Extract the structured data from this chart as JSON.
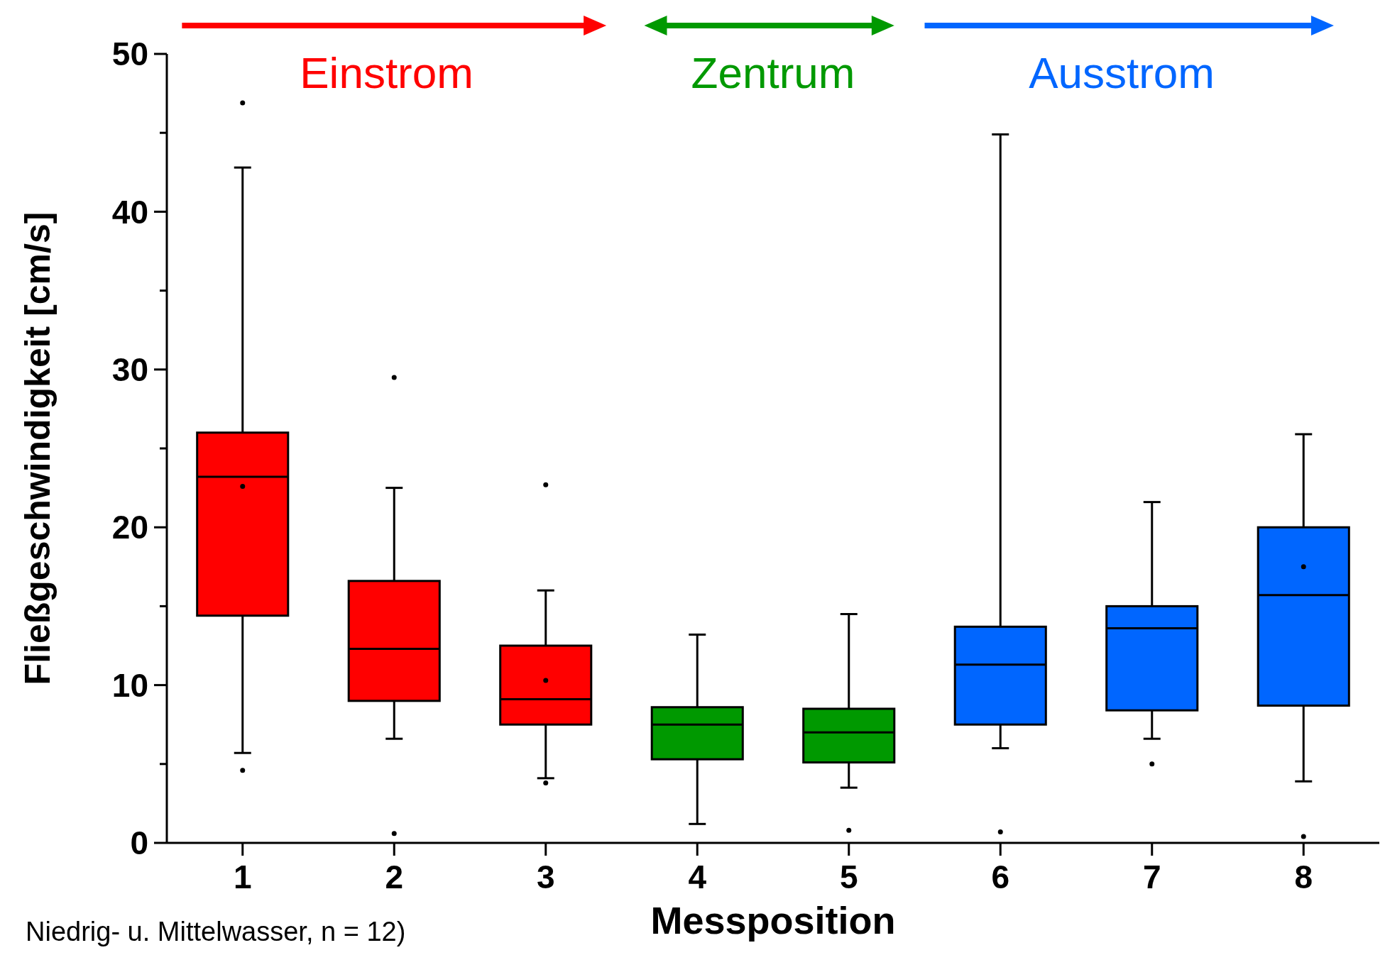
{
  "chart_data": {
    "type": "box",
    "xlabel": "Messposition",
    "ylabel": "Fließgeschwindigkeit [cm/s]",
    "categories": [
      "1",
      "2",
      "3",
      "4",
      "5",
      "6",
      "7",
      "8"
    ],
    "colors": [
      "#ff0000",
      "#ff0000",
      "#ff0000",
      "#009900",
      "#009900",
      "#0066ff",
      "#0066ff",
      "#0066ff"
    ],
    "boxes": [
      {
        "low": 5.7,
        "q1": 14.4,
        "median": 23.2,
        "q3": 26,
        "high": 42.8,
        "mean": 22.6,
        "outliers": [
          46.9,
          4.6
        ]
      },
      {
        "low": 6.6,
        "q1": 9,
        "median": 12.3,
        "q3": 16.6,
        "high": 22.5,
        "outliers": [
          29.5,
          0.6
        ]
      },
      {
        "low": 4.1,
        "q1": 7.5,
        "median": 9.1,
        "q3": 12.5,
        "high": 16,
        "mean": 10.3,
        "outliers": [
          22.7,
          3.8
        ]
      },
      {
        "low": 1.2,
        "q1": 5.3,
        "median": 7.5,
        "q3": 8.6,
        "high": 13.2
      },
      {
        "low": 3.5,
        "q1": 5.1,
        "median": 7,
        "q3": 8.5,
        "high": 14.5,
        "outliers": [
          0.8
        ]
      },
      {
        "low": 6,
        "q1": 7.5,
        "median": 11.3,
        "q3": 13.7,
        "high": 44.9,
        "outliers": [
          0.7
        ]
      },
      {
        "low": 6.6,
        "q1": 8.4,
        "median": 13.6,
        "q3": 15,
        "high": 21.6,
        "outliers": [
          5
        ]
      },
      {
        "low": 3.9,
        "q1": 8.7,
        "median": 15.7,
        "q3": 20,
        "high": 25.9,
        "mean": 17.5,
        "outliers": [
          0.4
        ]
      }
    ],
    "ylim": [
      0,
      50
    ],
    "yticks": [
      0,
      {
        "value": 5,
        "label": null
      },
      10,
      {
        "value": 15,
        "label": null
      },
      20,
      {
        "value": 25,
        "label": null
      },
      30,
      {
        "value": 35,
        "label": null
      },
      40,
      {
        "value": 45,
        "label": null
      },
      50
    ],
    "grid": false,
    "annotations": [
      "Einstrom",
      "Zentrum",
      "Ausstrom",
      "Niedrig- u. Mittelwasser, n = 12)"
    ]
  }
}
